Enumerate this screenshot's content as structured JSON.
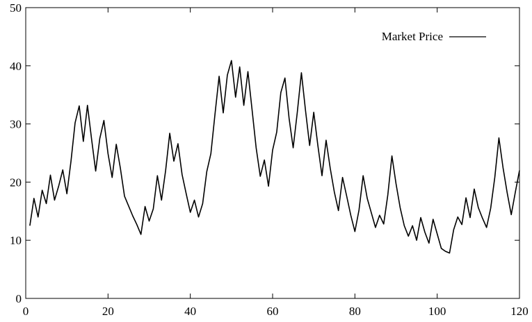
{
  "chart_data": {
    "type": "line",
    "title": "",
    "xlabel": "",
    "ylabel": "",
    "xlim": [
      0,
      120
    ],
    "ylim": [
      0,
      50
    ],
    "xticks": [
      0,
      20,
      40,
      60,
      80,
      100,
      120
    ],
    "yticks": [
      0,
      10,
      20,
      30,
      40,
      50
    ],
    "grid": false,
    "legend_position": "top-right",
    "series": [
      {
        "name": "Market Price",
        "color": "#000000",
        "x": [
          1,
          2,
          3,
          4,
          5,
          6,
          7,
          8,
          9,
          10,
          11,
          12,
          13,
          14,
          15,
          16,
          17,
          18,
          19,
          20,
          21,
          22,
          23,
          24,
          25,
          26,
          27,
          28,
          29,
          30,
          31,
          32,
          33,
          34,
          35,
          36,
          37,
          38,
          39,
          40,
          41,
          42,
          43,
          44,
          45,
          46,
          47,
          48,
          49,
          50,
          51,
          52,
          53,
          54,
          55,
          56,
          57,
          58,
          59,
          60,
          61,
          62,
          63,
          64,
          65,
          66,
          67,
          68,
          69,
          70,
          71,
          72,
          73,
          74,
          75,
          76,
          77,
          78,
          79,
          80,
          81,
          82,
          83,
          84,
          85,
          86,
          87,
          88,
          89,
          90,
          91,
          92,
          93,
          94,
          95,
          96,
          97,
          98,
          99,
          100,
          101,
          102,
          103,
          104,
          105,
          106,
          107,
          108,
          109,
          110,
          111,
          112,
          113,
          114,
          115,
          116,
          117,
          118,
          119,
          120
        ],
        "y": [
          12.5,
          17.2,
          14.0,
          18.6,
          16.3,
          21.2,
          16.9,
          19.3,
          22.1,
          18.0,
          23.6,
          30.2,
          33.1,
          27.0,
          33.2,
          27.4,
          21.9,
          27.5,
          30.6,
          24.9,
          20.8,
          26.5,
          22.4,
          17.6,
          15.9,
          14.2,
          12.7,
          11.0,
          15.8,
          13.3,
          15.4,
          21.1,
          16.9,
          22.0,
          28.4,
          23.6,
          26.6,
          21.3,
          18.0,
          14.8,
          16.9,
          14.0,
          16.3,
          21.8,
          24.9,
          31.7,
          38.2,
          31.9,
          38.4,
          40.9,
          34.6,
          39.8,
          33.2,
          39.0,
          32.5,
          25.9,
          21.0,
          23.8,
          19.3,
          25.5,
          28.6,
          35.4,
          37.9,
          31.0,
          25.9,
          32.0,
          38.8,
          32.3,
          26.3,
          32.0,
          26.3,
          21.1,
          27.2,
          22.4,
          18.3,
          15.1,
          20.8,
          17.6,
          14.3,
          11.5,
          15.2,
          21.1,
          17.2,
          14.7,
          12.2,
          14.3,
          12.8,
          17.8,
          24.5,
          19.7,
          15.6,
          12.5,
          10.7,
          12.5,
          10.0,
          13.9,
          11.4,
          9.5,
          13.6,
          11.1,
          8.6,
          8.1,
          7.8,
          11.8,
          14.0,
          12.7,
          17.3,
          13.9,
          18.8,
          15.6,
          13.8,
          12.2,
          15.5,
          20.8,
          27.6,
          22.5,
          18.2,
          14.4,
          18.3,
          22.0
        ]
      }
    ]
  }
}
